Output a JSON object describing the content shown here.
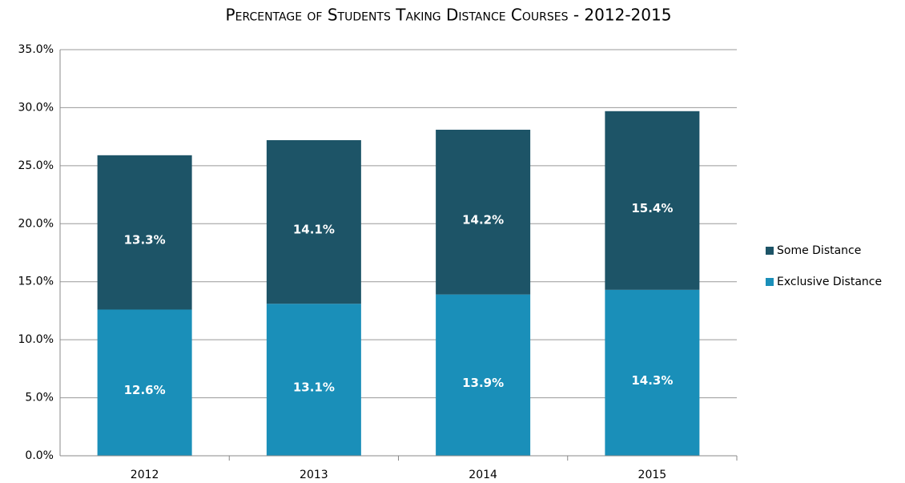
{
  "chart_data": {
    "type": "stacked_bar",
    "title": "Percentage of Students Taking Distance Courses - 2012-2015",
    "categories": [
      "2012",
      "2013",
      "2014",
      "2015"
    ],
    "series": [
      {
        "name": "Exclusive Distance",
        "color": "#1a8fb9",
        "values": [
          12.6,
          13.1,
          13.9,
          14.3
        ],
        "value_labels": [
          "12.6%",
          "13.1%",
          "13.9%",
          "14.3%"
        ]
      },
      {
        "name": "Some Distance",
        "color": "#1d5467",
        "values": [
          13.3,
          14.1,
          14.2,
          15.4
        ],
        "value_labels": [
          "13.3%",
          "14.1%",
          "14.2%",
          "15.4%"
        ]
      }
    ],
    "ylim": [
      0,
      35
    ],
    "yticks": [
      {
        "value": 0,
        "label": "0.0%"
      },
      {
        "value": 5,
        "label": "5.0%"
      },
      {
        "value": 10,
        "label": "10.0%"
      },
      {
        "value": 15,
        "label": "15.0%"
      },
      {
        "value": 20,
        "label": "20.0%"
      },
      {
        "value": 25,
        "label": "25.0%"
      },
      {
        "value": 30,
        "label": "30.0%"
      },
      {
        "value": 35,
        "label": "35.0%"
      }
    ],
    "grid": true,
    "legend": "right"
  }
}
